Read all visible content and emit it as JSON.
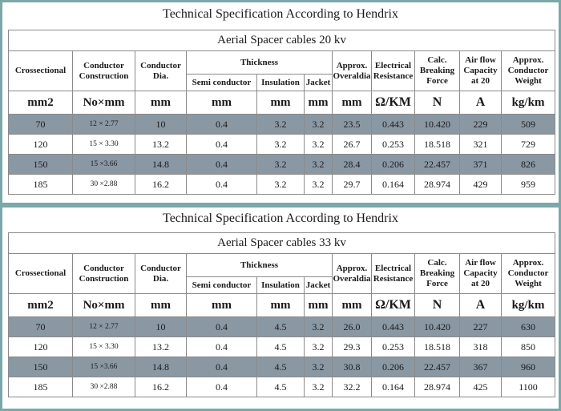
{
  "specs": [
    {
      "title": "Technical Specification According to Hendrix",
      "caption": "Aerial Spacer cables 20 kv",
      "rows": [
        [
          "70",
          "12 × 2.77",
          "10",
          "0.4",
          "3.2",
          "3.2",
          "23.5",
          "0.443",
          "10.420",
          "229",
          "509"
        ],
        [
          "120",
          "15 × 3.30",
          "13.2",
          "0.4",
          "3.2",
          "3.2",
          "26.7",
          "0.253",
          "18.518",
          "321",
          "729"
        ],
        [
          "150",
          "15 ×3.66",
          "14.8",
          "0.4",
          "3.2",
          "3.2",
          "28.4",
          "0.206",
          "22.457",
          "371",
          "826"
        ],
        [
          "185",
          "30 ×2.88",
          "16.2",
          "0.4",
          "3.2",
          "3.2",
          "29.7",
          "0.164",
          "28.974",
          "429",
          "959"
        ]
      ]
    },
    {
      "title": "Technical Specification According to Hendrix",
      "caption": "Aerial Spacer cables 33 kv",
      "rows": [
        [
          "70",
          "12 × 2.77",
          "10",
          "0.4",
          "4.5",
          "3.2",
          "26.0",
          "0.443",
          "10.420",
          "227",
          "630"
        ],
        [
          "120",
          "15 × 3.30",
          "13.2",
          "0.4",
          "4.5",
          "3.2",
          "29.3",
          "0.253",
          "18.518",
          "318",
          "850"
        ],
        [
          "150",
          "15 ×3.66",
          "14.8",
          "0.4",
          "4.5",
          "3.2",
          "30.8",
          "0.206",
          "22.457",
          "367",
          "960"
        ],
        [
          "185",
          "30 ×2.88",
          "16.2",
          "0.4",
          "4.5",
          "3.2",
          "32.2",
          "0.164",
          "28.974",
          "425",
          "1100"
        ]
      ]
    }
  ],
  "headers": {
    "crossectional": "Crossectional",
    "conductor_construction": "Conductor Construction",
    "conductor_dia": "Conductor Dia.",
    "thickness": "Thickness",
    "semi_conductor": "Semi conductor",
    "insulation": "Insulation",
    "jacket": "Jacket",
    "overall_dia": "Approx. Overaldia",
    "electrical_resistance": "Electrical Resistance",
    "breaking_force": "Calc. Breaking Force",
    "air_flow": "Air flow Capacity at 20",
    "conductor_weight": "Approx. Conductor Weight"
  },
  "units": [
    "mm2",
    "No×mm",
    "mm",
    "mm",
    "mm",
    "mm",
    "mm",
    "Ω/KM",
    "N",
    "A",
    "kg/km"
  ],
  "colors": {
    "border": "#7ba8a8",
    "dark_row": "#8a98a4",
    "light_row": "#ffffff"
  }
}
